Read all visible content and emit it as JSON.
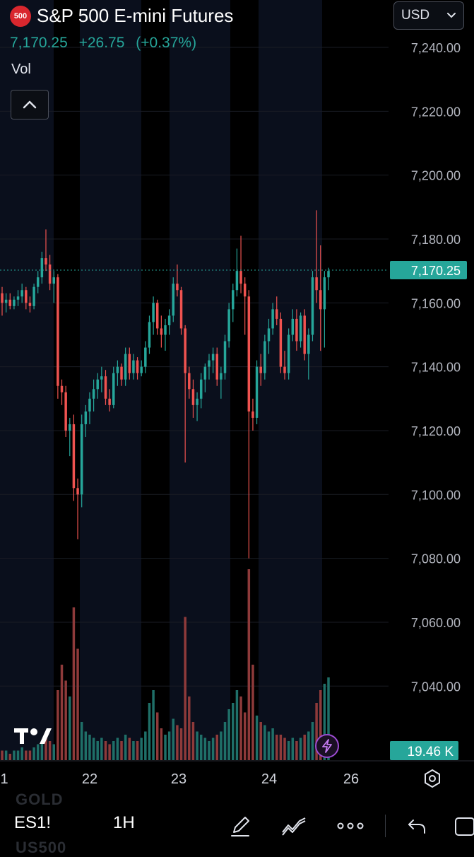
{
  "header": {
    "badge": "500",
    "title": "S&P 500 E-mini Futures",
    "last": "7,170.25",
    "change": "+26.75",
    "change_pct": "(+0.37%)",
    "vol_label": "Vol",
    "currency": "USD"
  },
  "colors": {
    "up": "#26a69a",
    "down": "#ef5350",
    "background": "#000000",
    "session": "#0a0f1c",
    "axis_text": "#b2b5be",
    "price_tag": "#26a69a",
    "badge": "#d9272e"
  },
  "chart_data": {
    "type": "candlestick",
    "yticks": [
      "7,240.00",
      "7,220.00",
      "7,200.00",
      "7,180.00",
      "7,160.00",
      "7,140.00",
      "7,120.00",
      "7,100.00",
      "7,080.00",
      "7,060.00",
      "7,040.00"
    ],
    "ylim": [
      7032,
      7248
    ],
    "xticks": [
      "1",
      "22",
      "23",
      "24",
      "26"
    ],
    "last_price": 7170.25,
    "last_price_label": "7,170.25",
    "volume_label": "19.46 K",
    "candles": [
      [
        7163,
        7165,
        7156,
        7160
      ],
      [
        7160,
        7163,
        7157,
        7161
      ],
      [
        7161,
        7163,
        7158,
        7159
      ],
      [
        7159,
        7162,
        7158,
        7161
      ],
      [
        7161,
        7164,
        7159,
        7162
      ],
      [
        7162,
        7166,
        7160,
        7164
      ],
      [
        7164,
        7165,
        7158,
        7160
      ],
      [
        7160,
        7162,
        7157,
        7159
      ],
      [
        7159,
        7166,
        7158,
        7165
      ],
      [
        7165,
        7170,
        7163,
        7168
      ],
      [
        7168,
        7176,
        7166,
        7174
      ],
      [
        7174,
        7183,
        7170,
        7172
      ],
      [
        7172,
        7175,
        7164,
        7166
      ],
      [
        7166,
        7170,
        7160,
        7168
      ],
      [
        7168,
        7169,
        7130,
        7134
      ],
      [
        7134,
        7136,
        7128,
        7132
      ],
      [
        7132,
        7134,
        7118,
        7120
      ],
      [
        7120,
        7124,
        7112,
        7122
      ],
      [
        7122,
        7125,
        7098,
        7102
      ],
      [
        7102,
        7105,
        7086,
        7100
      ],
      [
        7100,
        7125,
        7096,
        7122
      ],
      [
        7122,
        7128,
        7118,
        7126
      ],
      [
        7126,
        7132,
        7122,
        7130
      ],
      [
        7130,
        7136,
        7126,
        7133
      ],
      [
        7133,
        7138,
        7130,
        7136
      ],
      [
        7136,
        7140,
        7132,
        7137
      ],
      [
        7137,
        7139,
        7128,
        7130
      ],
      [
        7130,
        7133,
        7126,
        7128
      ],
      [
        7128,
        7140,
        7127,
        7138
      ],
      [
        7138,
        7142,
        7134,
        7140
      ],
      [
        7140,
        7141,
        7134,
        7136
      ],
      [
        7136,
        7146,
        7134,
        7144
      ],
      [
        7144,
        7146,
        7136,
        7138
      ],
      [
        7138,
        7144,
        7136,
        7142
      ],
      [
        7142,
        7143,
        7136,
        7138
      ],
      [
        7138,
        7142,
        7137,
        7140
      ],
      [
        7140,
        7148,
        7138,
        7146
      ],
      [
        7146,
        7156,
        7144,
        7154
      ],
      [
        7154,
        7162,
        7150,
        7160
      ],
      [
        7160,
        7161,
        7150,
        7152
      ],
      [
        7152,
        7156,
        7146,
        7150
      ],
      [
        7150,
        7155,
        7145,
        7153
      ],
      [
        7153,
        7158,
        7150,
        7156
      ],
      [
        7156,
        7168,
        7154,
        7166
      ],
      [
        7166,
        7172,
        7162,
        7164
      ],
      [
        7164,
        7165,
        7150,
        7152
      ],
      [
        7152,
        7153,
        7110,
        7138
      ],
      [
        7138,
        7140,
        7130,
        7133
      ],
      [
        7133,
        7136,
        7124,
        7128
      ],
      [
        7128,
        7132,
        7123,
        7130
      ],
      [
        7130,
        7138,
        7127,
        7136
      ],
      [
        7136,
        7141,
        7132,
        7140
      ],
      [
        7140,
        7144,
        7136,
        7142
      ],
      [
        7142,
        7146,
        7138,
        7144
      ],
      [
        7144,
        7146,
        7134,
        7136
      ],
      [
        7136,
        7140,
        7130,
        7138
      ],
      [
        7138,
        7150,
        7136,
        7148
      ],
      [
        7148,
        7160,
        7146,
        7158
      ],
      [
        7158,
        7166,
        7154,
        7164
      ],
      [
        7164,
        7177,
        7162,
        7170
      ],
      [
        7170,
        7181,
        7163,
        7166
      ],
      [
        7166,
        7168,
        7150,
        7162
      ],
      [
        7162,
        7164,
        7080,
        7126
      ],
      [
        7126,
        7130,
        7120,
        7124
      ],
      [
        7124,
        7142,
        7122,
        7140
      ],
      [
        7140,
        7144,
        7134,
        7138
      ],
      [
        7138,
        7150,
        7136,
        7148
      ],
      [
        7148,
        7155,
        7144,
        7152
      ],
      [
        7152,
        7160,
        7150,
        7158
      ],
      [
        7158,
        7162,
        7153,
        7155
      ],
      [
        7155,
        7157,
        7138,
        7140
      ],
      [
        7140,
        7145,
        7136,
        7138
      ],
      [
        7138,
        7152,
        7136,
        7150
      ],
      [
        7150,
        7158,
        7148,
        7155
      ],
      [
        7155,
        7158,
        7145,
        7148
      ],
      [
        7148,
        7157,
        7146,
        7156
      ],
      [
        7156,
        7158,
        7142,
        7144
      ],
      [
        7144,
        7152,
        7136,
        7150
      ],
      [
        7150,
        7170,
        7148,
        7168
      ],
      [
        7168,
        7189,
        7160,
        7164
      ],
      [
        7164,
        7178,
        7145,
        7158
      ],
      [
        7158,
        7170,
        7146,
        7168
      ],
      [
        7168,
        7171,
        7164,
        7170
      ]
    ],
    "volume": [
      3,
      3,
      2,
      3,
      3,
      4,
      3,
      3,
      4,
      5,
      6,
      8,
      6,
      5,
      22,
      30,
      25,
      20,
      48,
      35,
      12,
      9,
      8,
      7,
      6,
      7,
      6,
      5,
      6,
      7,
      6,
      8,
      7,
      6,
      6,
      7,
      9,
      18,
      22,
      15,
      10,
      8,
      9,
      13,
      11,
      10,
      45,
      20,
      12,
      9,
      8,
      7,
      6,
      7,
      8,
      9,
      12,
      16,
      18,
      22,
      20,
      15,
      60,
      30,
      14,
      12,
      11,
      9,
      10,
      8,
      8,
      7,
      6,
      7,
      6,
      7,
      8,
      9,
      12,
      18,
      22,
      24,
      26
    ]
  },
  "toolbar": {
    "symbol": "ES1!",
    "interval": "1H"
  },
  "watermark": {
    "top": "GOLD",
    "bottom": "US500"
  }
}
